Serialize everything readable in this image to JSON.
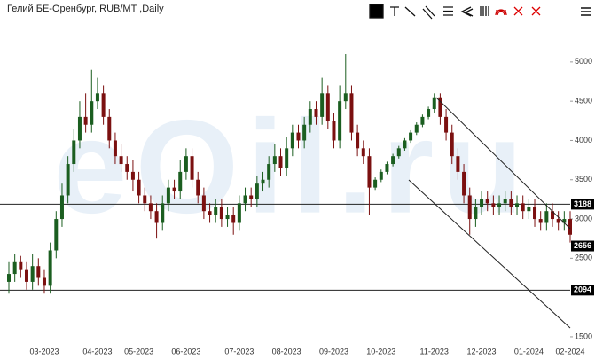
{
  "chart_data": {
    "type": "candlestick",
    "title": "Гелий БЕ-Оренбург, RUB/MT ,Daily",
    "watermark": "eOil.ru",
    "categories": [
      null,
      null,
      null,
      null,
      null,
      null,
      "03-2023",
      null,
      null,
      null,
      null,
      null,
      null,
      null,
      null,
      "04-2023",
      null,
      null,
      null,
      null,
      null,
      null,
      "05-2023",
      null,
      null,
      null,
      null,
      null,
      null,
      null,
      "06-2023",
      null,
      null,
      null,
      null,
      null,
      null,
      null,
      null,
      "07-2023",
      null,
      null,
      null,
      null,
      null,
      null,
      null,
      "08-2023",
      null,
      null,
      null,
      null,
      null,
      null,
      null,
      "09-2023",
      null,
      null,
      null,
      null,
      null,
      null,
      null,
      "10-2023",
      null,
      null,
      null,
      null,
      null,
      null,
      null,
      null,
      "11-2023",
      null,
      null,
      null,
      null,
      null,
      null,
      null,
      "12-2023",
      null,
      null,
      null,
      null,
      null,
      null,
      null,
      "01-2024",
      null,
      null,
      null,
      null,
      null,
      null,
      "02-2024"
    ],
    "open": [
      2200,
      2300,
      2450,
      2350,
      2200,
      2400,
      2250,
      2150,
      2600,
      3000,
      3300,
      3700,
      4000,
      4300,
      4200,
      4500,
      4600,
      4300,
      4000,
      3800,
      3700,
      3600,
      3500,
      3300,
      3200,
      3100,
      2950,
      3200,
      3400,
      3350,
      3600,
      3800,
      3500,
      3300,
      3100,
      3050,
      3150,
      3000,
      3050,
      2950,
      3200,
      3300,
      3250,
      3450,
      3500,
      3700,
      3800,
      3650,
      3900,
      4100,
      4000,
      4200,
      4400,
      4300,
      4600,
      4250,
      4000,
      4500,
      4600,
      4100,
      3900,
      3800,
      3400,
      3500,
      3600,
      3700,
      3800,
      3900,
      4000,
      4100,
      4200,
      4300,
      4400,
      4550,
      4300,
      4100,
      3800,
      3600,
      3300,
      3000,
      3150,
      3250,
      3200,
      3150,
      3200,
      3250,
      3150,
      3200,
      3100,
      3150,
      3000,
      2950,
      3100,
      3000,
      2950,
      3000
    ],
    "high": [
      2450,
      2550,
      2530,
      2450,
      2550,
      2500,
      2350,
      2700,
      3100,
      3450,
      3800,
      4150,
      4500,
      4600,
      4900,
      4800,
      4700,
      4400,
      4100,
      3950,
      3800,
      3750,
      3600,
      3400,
      3300,
      3200,
      3300,
      3500,
      3500,
      3750,
      3900,
      3900,
      3600,
      3400,
      3200,
      3250,
      3250,
      3150,
      3150,
      3300,
      3400,
      3400,
      3550,
      3600,
      3800,
      3950,
      3900,
      4050,
      4200,
      4200,
      4300,
      4500,
      4500,
      4800,
      4700,
      4350,
      4700,
      5100,
      4700,
      4200,
      4000,
      3900,
      3530,
      3630,
      3730,
      3830,
      3930,
      4030,
      4130,
      4230,
      4330,
      4430,
      4600,
      4600,
      4400,
      4200,
      3900,
      3700,
      3400,
      3250,
      3350,
      3350,
      3300,
      3300,
      3350,
      3350,
      3300,
      3300,
      3250,
      3250,
      3100,
      3200,
      3200,
      3100,
      3100,
      3100
    ],
    "low": [
      2050,
      2200,
      2250,
      2100,
      2100,
      2150,
      2050,
      2050,
      2500,
      2900,
      3200,
      3600,
      3900,
      4100,
      4100,
      4400,
      4200,
      3900,
      3700,
      3600,
      3500,
      3350,
      3200,
      3100,
      3000,
      2750,
      2850,
      3100,
      3250,
      3250,
      3500,
      3400,
      3200,
      3000,
      2950,
      2950,
      2900,
      2900,
      2800,
      2850,
      3100,
      3150,
      3150,
      3350,
      3400,
      3600,
      3550,
      3550,
      3800,
      3900,
      3900,
      4100,
      4200,
      4200,
      4150,
      3900,
      3900,
      4400,
      4000,
      3800,
      3700,
      3050,
      3370,
      3470,
      3570,
      3670,
      3770,
      3870,
      3970,
      4070,
      4170,
      4270,
      4350,
      4200,
      4000,
      3700,
      3500,
      3200,
      2800,
      2900,
      3050,
      3100,
      3050,
      3050,
      3100,
      3050,
      3050,
      3000,
      3000,
      2900,
      2850,
      2850,
      2900,
      2850,
      2850,
      2700
    ],
    "close": [
      2300,
      2450,
      2350,
      2200,
      2400,
      2250,
      2150,
      2600,
      3000,
      3300,
      3700,
      4000,
      4300,
      4200,
      4500,
      4600,
      4300,
      4000,
      3800,
      3700,
      3600,
      3500,
      3300,
      3200,
      3100,
      2950,
      3200,
      3400,
      3350,
      3600,
      3800,
      3500,
      3300,
      3100,
      3050,
      3150,
      3000,
      3050,
      2950,
      3200,
      3300,
      3250,
      3450,
      3500,
      3700,
      3800,
      3650,
      3900,
      4100,
      4000,
      4200,
      4400,
      4300,
      4600,
      4250,
      4000,
      4500,
      4600,
      4100,
      3900,
      3800,
      3400,
      3500,
      3600,
      3700,
      3800,
      3900,
      4000,
      4100,
      4200,
      4300,
      4400,
      4550,
      4300,
      4100,
      3800,
      3600,
      3300,
      3000,
      3150,
      3250,
      3200,
      3150,
      3200,
      3250,
      3150,
      3200,
      3100,
      3150,
      3000,
      2950,
      3100,
      3000,
      2950,
      3000,
      2800
    ],
    "up_color": "#1b5e20",
    "down_color": "#7b1010",
    "ylim": [
      1330,
      5450
    ],
    "yticks": [
      1500,
      2500,
      3000,
      3500,
      4000,
      4500,
      5000
    ],
    "levels": [
      3188,
      2656,
      2094
    ]
  }
}
